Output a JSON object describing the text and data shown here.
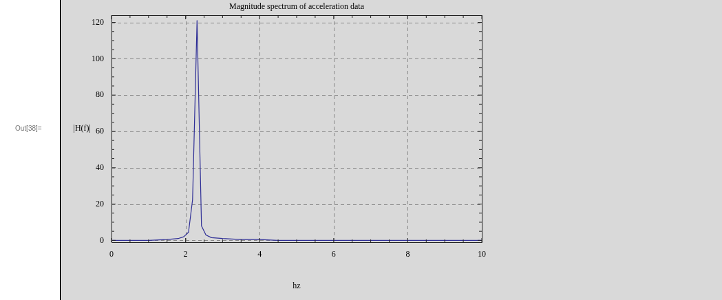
{
  "chart_data": {
    "type": "line",
    "title": "Magnitude spectrum of acceleration data",
    "xlabel": "hz",
    "ylabel": "|H(f)|",
    "annotations": [
      "Out[38]="
    ],
    "x": [
      0,
      0.5,
      1,
      1.5,
      1.8,
      1.95,
      2.08,
      2.19,
      2.31,
      2.43,
      2.55,
      2.7,
      3,
      3.5,
      4,
      4.5,
      5,
      6,
      7,
      8,
      9,
      10
    ],
    "series": [
      {
        "color": "#2e2e96",
        "values": [
          0,
          0,
          0,
          0.5,
          1,
          2,
          4.5,
          22.5,
          121,
          8,
          3,
          1.5,
          1,
          0.5,
          0.5,
          0,
          0,
          0,
          0,
          0,
          0,
          0
        ]
      }
    ],
    "xlim": [
      0,
      10
    ],
    "ylim": [
      -1,
      124
    ],
    "xticks": [
      0,
      {
        "value": 0.5,
        "label": null
      },
      {
        "value": 1,
        "label": null
      },
      {
        "value": 1.5,
        "label": null
      },
      2,
      {
        "value": 2.5,
        "label": null
      },
      {
        "value": 3,
        "label": null
      },
      {
        "value": 3.5,
        "label": null
      },
      4,
      {
        "value": 4.5,
        "label": null
      },
      {
        "value": 5,
        "label": null
      },
      {
        "value": 5.5,
        "label": null
      },
      6,
      {
        "value": 6.5,
        "label": null
      },
      {
        "value": 7,
        "label": null
      },
      {
        "value": 7.5,
        "label": null
      },
      8,
      {
        "value": 8.5,
        "label": null
      },
      {
        "value": 9,
        "label": null
      },
      {
        "value": 9.5,
        "label": null
      },
      10
    ],
    "yticks": [
      0,
      {
        "value": 5,
        "label": null
      },
      {
        "value": 10,
        "label": null
      },
      {
        "value": 15,
        "label": null
      },
      20,
      {
        "value": 25,
        "label": null
      },
      {
        "value": 30,
        "label": null
      },
      {
        "value": 35,
        "label": null
      },
      40,
      {
        "value": 45,
        "label": null
      },
      {
        "value": 50,
        "label": null
      },
      {
        "value": 55,
        "label": null
      },
      60,
      {
        "value": 65,
        "label": null
      },
      {
        "value": 70,
        "label": null
      },
      {
        "value": 75,
        "label": null
      },
      80,
      {
        "value": 85,
        "label": null
      },
      {
        "value": 90,
        "label": null
      },
      {
        "value": 95,
        "label": null
      },
      100,
      {
        "value": 105,
        "label": null
      },
      {
        "value": 110,
        "label": null
      },
      {
        "value": 115,
        "label": null
      },
      120
    ],
    "grid": true,
    "legend": false,
    "marker": "none",
    "line_style": "solid"
  }
}
